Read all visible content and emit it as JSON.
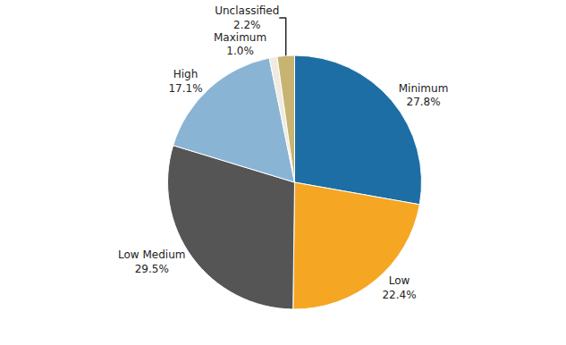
{
  "chart_data": {
    "type": "pie",
    "categories": [
      "Minimum",
      "Low",
      "Low Medium",
      "High",
      "Maximum",
      "Unclassified"
    ],
    "values": [
      27.8,
      22.4,
      29.5,
      17.1,
      1.0,
      2.2
    ],
    "value_labels": [
      "27.8%",
      "22.4%",
      "29.5%",
      "17.1%",
      "1.0%",
      "2.2%"
    ],
    "colors": [
      "#1c6ea4",
      "#f5a623",
      "#555555",
      "#8ab4d4",
      "#f0ebe0",
      "#c8b472"
    ],
    "data_labels": true
  }
}
